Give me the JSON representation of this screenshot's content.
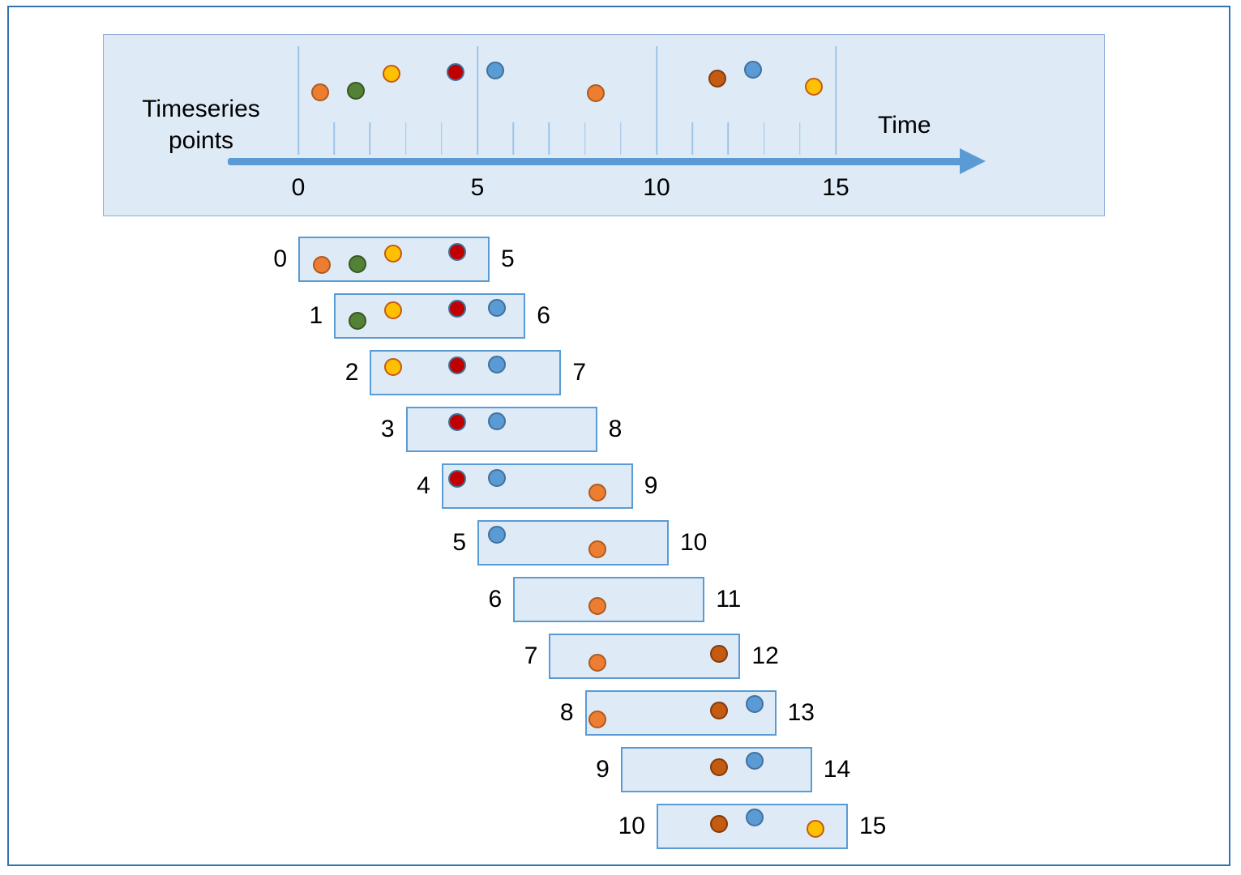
{
  "colors": {
    "outer_border": "#2E74B5",
    "panel_bg": "#DEEBF7",
    "panel_border": "#8FAADC",
    "window_border": "#5B9BD5",
    "axis_color": "#5B9BD5",
    "tick_color": "#9DC3E6"
  },
  "diagram": {
    "timeline_panel": {
      "left_label": "Timeseries points",
      "right_label": "Time",
      "axis_range": [
        0,
        15
      ],
      "axis_ticks": [
        {
          "t": 0,
          "label": "0"
        },
        {
          "t": 5,
          "label": "5"
        },
        {
          "t": 10,
          "label": "10"
        },
        {
          "t": 15,
          "label": "15"
        }
      ],
      "minor_ticks": [
        1,
        2,
        3,
        4,
        6,
        7,
        8,
        9,
        11,
        12,
        13,
        14
      ]
    },
    "points": [
      {
        "name": "orange-point-1",
        "time": 0.6,
        "level": 0.65,
        "fill": "#ED7D31",
        "stroke": "#AE5A21"
      },
      {
        "name": "green-point",
        "time": 1.6,
        "level": 0.62,
        "fill": "#548235",
        "stroke": "#375623"
      },
      {
        "name": "yellow-point-1",
        "time": 2.6,
        "level": 0.3,
        "fill": "#FFC000",
        "stroke": "#C55A11"
      },
      {
        "name": "red-point",
        "time": 4.4,
        "level": 0.27,
        "fill": "#C00000",
        "stroke": "#41719C"
      },
      {
        "name": "blue-point-1",
        "time": 5.5,
        "level": 0.24,
        "fill": "#5B9BD5",
        "stroke": "#41719C"
      },
      {
        "name": "orange-point-2",
        "time": 8.3,
        "level": 0.66,
        "fill": "#ED7D31",
        "stroke": "#AE5A21"
      },
      {
        "name": "brown-point",
        "time": 11.7,
        "level": 0.4,
        "fill": "#C55A11",
        "stroke": "#843C0C"
      },
      {
        "name": "blue-point-2",
        "time": 12.7,
        "level": 0.22,
        "fill": "#5B9BD5",
        "stroke": "#41719C"
      },
      {
        "name": "yellow-point-2",
        "time": 14.4,
        "level": 0.55,
        "fill": "#FFC000",
        "stroke": "#C55A11"
      }
    ],
    "windows": [
      {
        "start": 0,
        "end": 5,
        "start_label": "0",
        "end_label": "5"
      },
      {
        "start": 1,
        "end": 6,
        "start_label": "1",
        "end_label": "6"
      },
      {
        "start": 2,
        "end": 7,
        "start_label": "2",
        "end_label": "7"
      },
      {
        "start": 3,
        "end": 8,
        "start_label": "3",
        "end_label": "8"
      },
      {
        "start": 4,
        "end": 9,
        "start_label": "4",
        "end_label": "9"
      },
      {
        "start": 5,
        "end": 10,
        "start_label": "5",
        "end_label": "10"
      },
      {
        "start": 6,
        "end": 11,
        "start_label": "6",
        "end_label": "11"
      },
      {
        "start": 7,
        "end": 12,
        "start_label": "7",
        "end_label": "12"
      },
      {
        "start": 8,
        "end": 13,
        "start_label": "8",
        "end_label": "13"
      },
      {
        "start": 9,
        "end": 14,
        "start_label": "9",
        "end_label": "14"
      },
      {
        "start": 10,
        "end": 15,
        "start_label": "10",
        "end_label": "15"
      }
    ]
  }
}
